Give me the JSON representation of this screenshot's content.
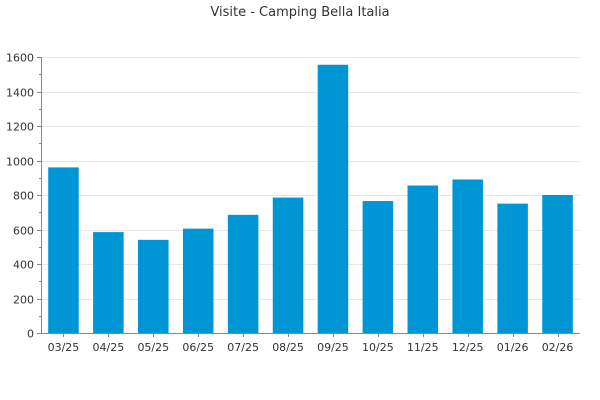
{
  "chart_data": {
    "type": "bar",
    "title": "Visite - Camping Bella Italia",
    "xlabel": "",
    "ylabel": "",
    "categories": [
      "03/25",
      "04/25",
      "05/25",
      "06/25",
      "07/25",
      "08/25",
      "09/25",
      "10/25",
      "11/25",
      "12/25",
      "01/26",
      "02/26"
    ],
    "values": [
      960,
      585,
      540,
      605,
      685,
      785,
      1555,
      765,
      855,
      890,
      750,
      800
    ],
    "ylim": [
      0,
      1600
    ],
    "yticks": [
      0,
      200,
      400,
      600,
      800,
      1000,
      1200,
      1400,
      1600
    ],
    "grid": true,
    "legend": "none",
    "bar_color": "#0096d6",
    "grid_color": "#e6e6e6",
    "axis_color": "#888888",
    "text_color": "#333333"
  }
}
